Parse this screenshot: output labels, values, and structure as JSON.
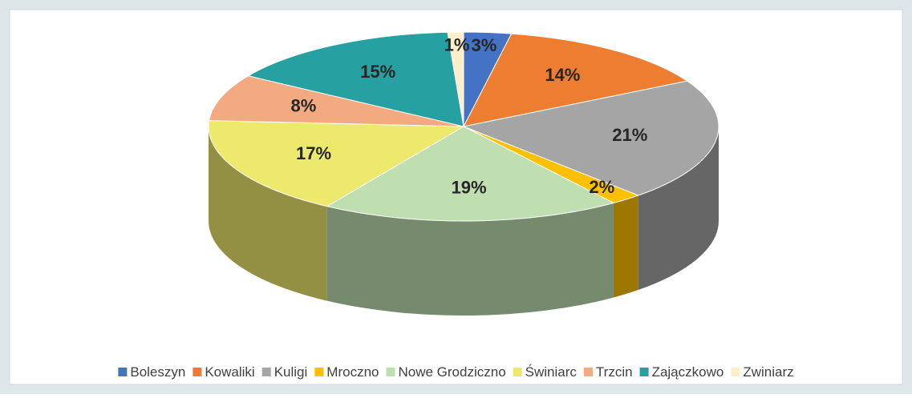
{
  "chart_data": {
    "type": "pie",
    "categories": [
      "Boleszyn",
      "Kowaliki",
      "Kuligi",
      "Mroczno",
      "Nowe Grodziczno",
      "Świniarc",
      "Trzcin",
      "Zajączkowo",
      "Zwiniarz"
    ],
    "values": [
      3,
      14,
      21,
      2,
      19,
      17,
      8,
      15,
      1
    ],
    "value_labels": [
      "3%",
      "14%",
      "21%",
      "2%",
      "19%",
      "17%",
      "8%",
      "15%",
      "1%"
    ],
    "colors": [
      "#4472c4",
      "#ed7d31",
      "#a5a5a5",
      "#ffc000",
      "#bfdfb0",
      "#ede96c",
      "#f4aa80",
      "#26a0a0",
      "#fcefc7"
    ],
    "legend": "bottom"
  }
}
